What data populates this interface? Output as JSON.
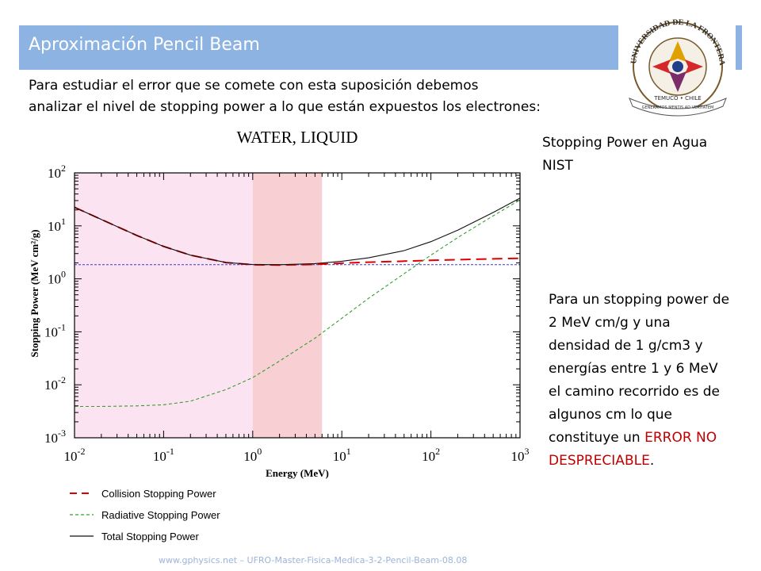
{
  "header": {
    "title": "Aproximación Pencil Beam",
    "colors": {
      "bar": "#8db3e2",
      "text": "#ffffff"
    }
  },
  "intro": {
    "line1": "Para estudiar el error que se comete con esta suposición debemos",
    "line2": "analizar el nivel de stopping power a lo que están expuestos los electrones:"
  },
  "side_label": {
    "line1": "Stopping Power en Agua",
    "line2": "NIST"
  },
  "note": {
    "text": "Para un stopping power de 2 MeV cm/g y una densidad de 1 g/cm3 y energías entre 1 y 6 MeV el camino recorrido es de algunos cm lo que constituye un ",
    "highlight": "ERROR NO DESPRECIABLE",
    "end": ".",
    "highlight_color": "#c00000"
  },
  "logo": {
    "arc_text": "UNIVERSIDAD DE LA FRONTERA",
    "city": "TEMUCO • CHILE",
    "motto": "GENERAMOS MENTIS AD VERITATEM"
  },
  "footer": {
    "text": "www.gphysics.net – UFRO-Master-Fisica-Medica-3-2-Pencil-Beam-08.08"
  },
  "chart_data": {
    "type": "line",
    "title": "WATER, LIQUID",
    "xlabel": "Energy (MeV)",
    "ylabel": "Stopping Power (MeV cm²/g)",
    "x_scale": "log",
    "y_scale": "log",
    "xlim": [
      0.01,
      1000
    ],
    "ylim": [
      0.001,
      100
    ],
    "x_ticks": [
      {
        "base": "10",
        "exp": "-2",
        "value": 0.01
      },
      {
        "base": "10",
        "exp": "-1",
        "value": 0.1
      },
      {
        "base": "10",
        "exp": "0",
        "value": 1
      },
      {
        "base": "10",
        "exp": "1",
        "value": 10
      },
      {
        "base": "10",
        "exp": "2",
        "value": 100
      },
      {
        "base": "10",
        "exp": "3",
        "value": 1000
      }
    ],
    "y_ticks": [
      {
        "base": "10",
        "exp": "-3",
        "value": 0.001
      },
      {
        "base": "10",
        "exp": "-2",
        "value": 0.01
      },
      {
        "base": "10",
        "exp": "-1",
        "value": 0.1
      },
      {
        "base": "10",
        "exp": "0",
        "value": 1
      },
      {
        "base": "10",
        "exp": "1",
        "value": 10
      },
      {
        "base": "10",
        "exp": "2",
        "value": 100
      }
    ],
    "shaded_regions": [
      {
        "x0": 0.01,
        "x1": 1,
        "color": "#fbe3f1"
      },
      {
        "x0": 1,
        "x1": 6,
        "color": "#f8cfd3"
      }
    ],
    "reference_line": {
      "y": 1.85,
      "color": "#3b3bd6"
    },
    "series": [
      {
        "name": "Collision Stopping Power",
        "color": "#e00000",
        "style": "long-dash",
        "x": [
          0.01,
          0.02,
          0.05,
          0.1,
          0.2,
          0.5,
          1,
          2,
          5,
          10,
          20,
          50,
          100,
          200,
          500,
          1000
        ],
        "y": [
          22.4,
          13.2,
          6.6,
          4.1,
          2.8,
          2.03,
          1.85,
          1.82,
          1.87,
          1.97,
          2.06,
          2.16,
          2.23,
          2.3,
          2.38,
          2.44
        ]
      },
      {
        "name": "Radiative Stopping Power",
        "color": "#33a02c",
        "style": "short-dash",
        "x": [
          0.01,
          0.02,
          0.05,
          0.1,
          0.2,
          0.5,
          1,
          2,
          5,
          10,
          20,
          50,
          100,
          200,
          500,
          1000
        ],
        "y": [
          0.0039,
          0.0039,
          0.004,
          0.0042,
          0.0049,
          0.0081,
          0.0137,
          0.028,
          0.076,
          0.18,
          0.43,
          1.25,
          2.8,
          6.0,
          15.5,
          31
        ]
      },
      {
        "name": "Total Stopping Power",
        "color": "#111111",
        "style": "solid",
        "x": [
          0.01,
          0.02,
          0.05,
          0.1,
          0.2,
          0.5,
          1,
          2,
          5,
          10,
          20,
          50,
          100,
          200,
          500,
          1000
        ],
        "y": [
          22.4,
          13.2,
          6.6,
          4.1,
          2.8,
          2.04,
          1.86,
          1.85,
          1.94,
          2.15,
          2.49,
          3.41,
          5.03,
          8.3,
          17.9,
          33.4
        ]
      }
    ],
    "legend": {
      "position": "bottom-left"
    }
  }
}
